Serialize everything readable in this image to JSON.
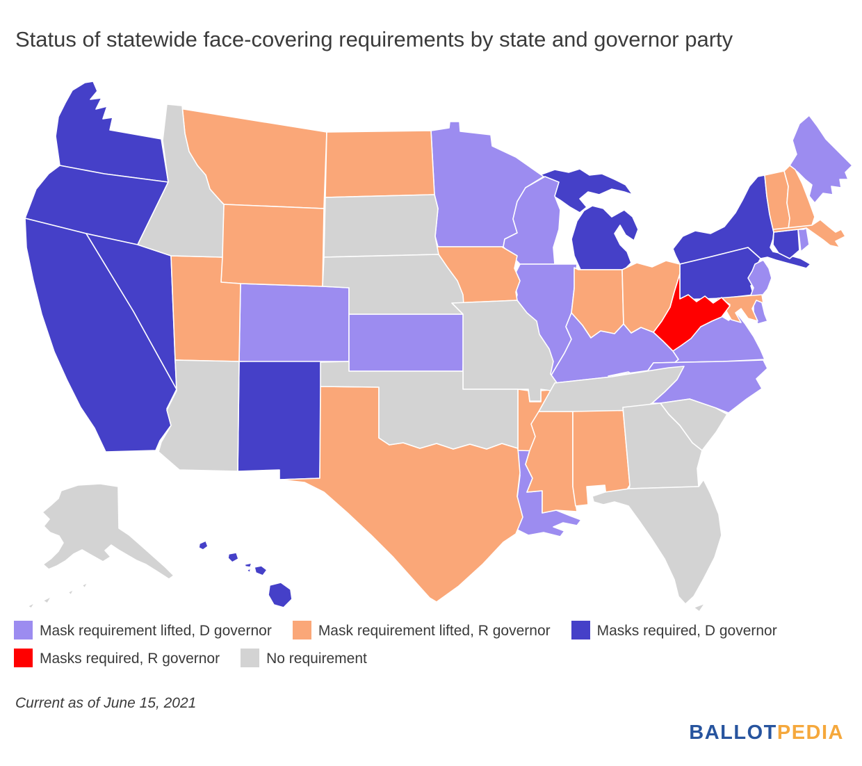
{
  "title": "Status of statewide face-covering requirements by state and governor party",
  "footnote": "Current as of June 15, 2021",
  "logo": {
    "part1": "BALLOT",
    "part2": "PEDIA",
    "color1": "#27549e",
    "color2": "#f5a83c"
  },
  "legend": {
    "items": [
      {
        "id": "lifted_d",
        "label": "Mask requirement lifted, D governor",
        "color": "#9c8cf0"
      },
      {
        "id": "lifted_r",
        "label": "Mask requirement lifted, R governor",
        "color": "#faa778"
      },
      {
        "id": "required_d",
        "label": "Masks required, D governor",
        "color": "#4540c8"
      },
      {
        "id": "required_r",
        "label": "Masks required, R governor",
        "color": "#ff0000"
      },
      {
        "id": "none",
        "label": "No requirement",
        "color": "#d3d3d3"
      }
    ]
  },
  "map": {
    "border_color": "#ffffff",
    "categories": {
      "lifted_d": {
        "label": "Mask requirement lifted, D governor",
        "color": "#9c8cf0"
      },
      "lifted_r": {
        "label": "Mask requirement lifted, R governor",
        "color": "#faa778"
      },
      "required_d": {
        "label": "Masks required, D governor",
        "color": "#4540c8"
      },
      "required_r": {
        "label": "Masks required, R governor",
        "color": "#ff0000"
      },
      "none": {
        "label": "No requirement",
        "color": "#d3d3d3"
      }
    },
    "states": [
      {
        "id": "WA",
        "name": "Washington",
        "category": "required_d"
      },
      {
        "id": "OR",
        "name": "Oregon",
        "category": "required_d"
      },
      {
        "id": "CA",
        "name": "California",
        "category": "required_d"
      },
      {
        "id": "NV",
        "name": "Nevada",
        "category": "required_d"
      },
      {
        "id": "NM",
        "name": "New Mexico",
        "category": "required_d"
      },
      {
        "id": "HI",
        "name": "Hawaii",
        "category": "required_d"
      },
      {
        "id": "MI",
        "name": "Michigan",
        "category": "required_d"
      },
      {
        "id": "NY",
        "name": "New York",
        "category": "required_d"
      },
      {
        "id": "PA",
        "name": "Pennsylvania",
        "category": "required_d"
      },
      {
        "id": "CT",
        "name": "Connecticut",
        "category": "required_d"
      },
      {
        "id": "ME",
        "name": "Maine",
        "category": "lifted_d"
      },
      {
        "id": "MN",
        "name": "Minnesota",
        "category": "lifted_d"
      },
      {
        "id": "WI",
        "name": "Wisconsin",
        "category": "lifted_d"
      },
      {
        "id": "IL",
        "name": "Illinois",
        "category": "lifted_d"
      },
      {
        "id": "CO",
        "name": "Colorado",
        "category": "lifted_d"
      },
      {
        "id": "KS",
        "name": "Kansas",
        "category": "lifted_d"
      },
      {
        "id": "LA",
        "name": "Louisiana",
        "category": "lifted_d"
      },
      {
        "id": "KY",
        "name": "Kentucky",
        "category": "lifted_d"
      },
      {
        "id": "VA",
        "name": "Virginia",
        "category": "lifted_d"
      },
      {
        "id": "NC",
        "name": "North Carolina",
        "category": "lifted_d"
      },
      {
        "id": "NJ",
        "name": "New Jersey",
        "category": "lifted_d"
      },
      {
        "id": "DE",
        "name": "Delaware",
        "category": "lifted_d"
      },
      {
        "id": "RI",
        "name": "Rhode Island",
        "category": "lifted_d"
      },
      {
        "id": "MT",
        "name": "Montana",
        "category": "lifted_r"
      },
      {
        "id": "ND",
        "name": "North Dakota",
        "category": "lifted_r"
      },
      {
        "id": "WY",
        "name": "Wyoming",
        "category": "lifted_r"
      },
      {
        "id": "UT",
        "name": "Utah",
        "category": "lifted_r"
      },
      {
        "id": "IA",
        "name": "Iowa",
        "category": "lifted_r"
      },
      {
        "id": "IN",
        "name": "Indiana",
        "category": "lifted_r"
      },
      {
        "id": "OH",
        "name": "Ohio",
        "category": "lifted_r"
      },
      {
        "id": "VT",
        "name": "Vermont",
        "category": "lifted_r"
      },
      {
        "id": "NH",
        "name": "New Hampshire",
        "category": "lifted_r"
      },
      {
        "id": "MA",
        "name": "Massachusetts",
        "category": "lifted_r"
      },
      {
        "id": "MD",
        "name": "Maryland",
        "category": "lifted_r"
      },
      {
        "id": "TX",
        "name": "Texas",
        "category": "lifted_r"
      },
      {
        "id": "AR",
        "name": "Arkansas",
        "category": "lifted_r"
      },
      {
        "id": "MS",
        "name": "Mississippi",
        "category": "lifted_r"
      },
      {
        "id": "AL",
        "name": "Alabama",
        "category": "lifted_r"
      },
      {
        "id": "WV",
        "name": "West Virginia",
        "category": "required_r"
      },
      {
        "id": "ID",
        "name": "Idaho",
        "category": "none"
      },
      {
        "id": "SD",
        "name": "South Dakota",
        "category": "none"
      },
      {
        "id": "NE",
        "name": "Nebraska",
        "category": "none"
      },
      {
        "id": "MO",
        "name": "Missouri",
        "category": "none"
      },
      {
        "id": "OK",
        "name": "Oklahoma",
        "category": "none"
      },
      {
        "id": "AZ",
        "name": "Arizona",
        "category": "none"
      },
      {
        "id": "AK",
        "name": "Alaska",
        "category": "none"
      },
      {
        "id": "TN",
        "name": "Tennessee",
        "category": "none"
      },
      {
        "id": "GA",
        "name": "Georgia",
        "category": "none"
      },
      {
        "id": "FL",
        "name": "Florida",
        "category": "none"
      },
      {
        "id": "SC",
        "name": "South Carolina",
        "category": "none"
      }
    ]
  }
}
